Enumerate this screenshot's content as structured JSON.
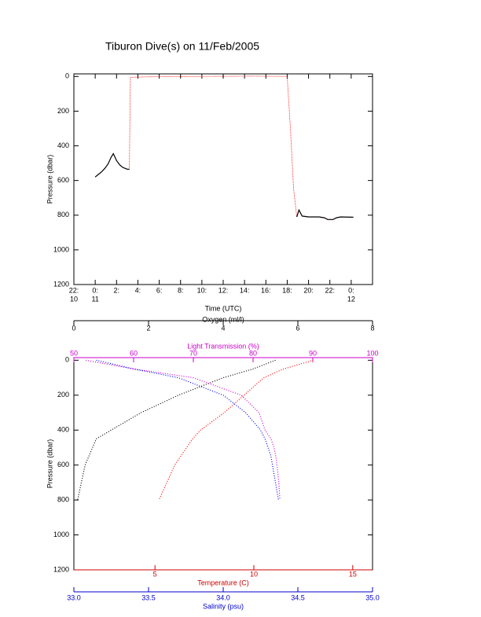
{
  "chart_data": [
    {
      "type": "line",
      "title": "Tiburon Dive(s) on 11/Feb/2005",
      "xlabel": "Time (UTC)",
      "ylabel": "Pressure (dbar)",
      "xlim": [
        -2,
        26
      ],
      "ylim": [
        1200,
        -15
      ],
      "xticks": [
        {
          "value": -2,
          "label": "22:",
          "date": "10"
        },
        {
          "value": 0,
          "label": "0:",
          "date": "11"
        },
        {
          "value": 2,
          "label": "2:"
        },
        {
          "value": 4,
          "label": "4:"
        },
        {
          "value": 6,
          "label": "6:"
        },
        {
          "value": 8,
          "label": "8:"
        },
        {
          "value": 10,
          "label": "10:"
        },
        {
          "value": 12,
          "label": "12:"
        },
        {
          "value": 14,
          "label": "14:"
        },
        {
          "value": 16,
          "label": "16:"
        },
        {
          "value": 18,
          "label": "18:"
        },
        {
          "value": 20,
          "label": "20:"
        },
        {
          "value": 22,
          "label": "22:"
        },
        {
          "value": 24,
          "label": "0:",
          "date": "12"
        }
      ],
      "yticks": [
        0,
        200,
        400,
        600,
        800,
        1000,
        1200
      ],
      "x": [
        0,
        0.3,
        0.6,
        0.9,
        1.2,
        1.5,
        1.7,
        2.0,
        2.3,
        2.6,
        3.0,
        3.2,
        3.3,
        5,
        10,
        15,
        18.0,
        18.3,
        18.6,
        18.9,
        19.0,
        19.1,
        19.4,
        20,
        21,
        21.5,
        21.8,
        22.3,
        22.6,
        23,
        24.2
      ],
      "series": [
        {
          "color": "#ff0000",
          "values": [
            580,
            565,
            550,
            530,
            505,
            465,
            445,
            485,
            510,
            525,
            535,
            535,
            5,
            2,
            0,
            -2,
            0,
            300,
            650,
            810,
            790,
            770,
            805,
            810,
            810,
            815,
            825,
            825,
            815,
            810,
            812
          ]
        },
        {
          "color": "#000000",
          "values": [
            580,
            565,
            550,
            530,
            505,
            465,
            445,
            485,
            510,
            525,
            535,
            535,
            null,
            null,
            null,
            null,
            null,
            null,
            null,
            810,
            790,
            770,
            805,
            810,
            810,
            815,
            825,
            825,
            815,
            810,
            812
          ]
        }
      ]
    },
    {
      "type": "profile",
      "ylabel": "Pressure (dbar)",
      "ylim": [
        1200,
        -15
      ],
      "yticks": [
        0,
        200,
        400,
        600,
        800,
        1000,
        1200
      ],
      "axes": [
        {
          "label": "Oxygen (ml/l)",
          "lim": [
            0,
            8
          ],
          "ticks": [
            0,
            2,
            4,
            6,
            8
          ],
          "color": "#000000"
        },
        {
          "label": "Light Transmission (%)",
          "lim": [
            50,
            100
          ],
          "ticks": [
            50,
            60,
            70,
            80,
            90,
            100
          ],
          "color": "#cc00cc"
        },
        {
          "label": "Temperature (C)",
          "lim": [
            0.9,
            16
          ],
          "ticks": [
            5,
            10,
            15
          ],
          "color": "#cc0000"
        },
        {
          "label": "Salinity (psu)",
          "lim": [
            33,
            35
          ],
          "ticks": [
            {
              "value": 33,
              "label": "33.0"
            },
            33.5,
            {
              "value": 34,
              "label": "34.0"
            },
            34.5,
            {
              "value": 35,
              "label": "35.0"
            }
          ],
          "color": "#0000cc"
        }
      ],
      "pressure": [
        0,
        50,
        100,
        200,
        300,
        400,
        450,
        500,
        550,
        600,
        700,
        800
      ],
      "series": [
        {
          "axis": 0,
          "color": "#000000",
          "values": [
            5.4,
            4.8,
            4.0,
            2.8,
            1.8,
            1.0,
            0.6,
            0.5,
            0.4,
            0.3,
            0.2,
            0.1
          ]
        },
        {
          "axis": 1,
          "color": "#cc00cc",
          "values": [
            52,
            60,
            70,
            78,
            81,
            82,
            83,
            83.5,
            83.8,
            84,
            84.3,
            84.5
          ]
        },
        {
          "axis": 2,
          "color": "#ff0000",
          "values": [
            13.0,
            11.5,
            10.5,
            9.5,
            8.5,
            7.3,
            6.9,
            6.6,
            6.3,
            6.0,
            5.6,
            5.2
          ]
        },
        {
          "axis": 3,
          "color": "#0000ff",
          "values": [
            33.15,
            33.4,
            33.7,
            34.0,
            34.15,
            34.25,
            34.28,
            34.3,
            34.32,
            34.33,
            34.35,
            34.37
          ]
        }
      ]
    }
  ]
}
